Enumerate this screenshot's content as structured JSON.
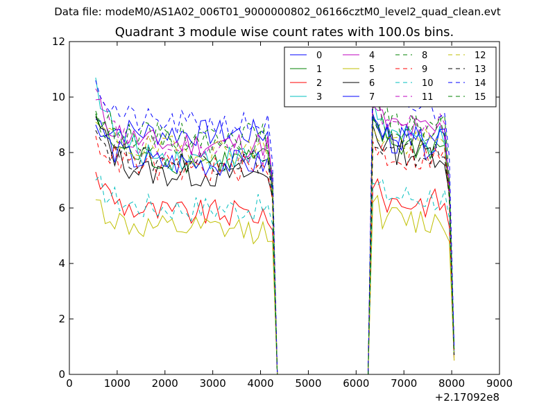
{
  "chart_data": {
    "type": "line",
    "suptitle": "Data file: modeM0/AS1A02_006T01_9000000802_06166cztM0_level2_quad_clean.evt",
    "title": "Quadrant 3 module wise count rates with 100.0s bins.",
    "xlabel": "",
    "ylabel": "",
    "x_offset_label": "+2.17092e8",
    "xlim": [
      0,
      9000
    ],
    "ylim": [
      0,
      12
    ],
    "xticks": [
      0,
      1000,
      2000,
      3000,
      4000,
      5000,
      6000,
      7000,
      8000,
      9000
    ],
    "yticks": [
      0,
      2,
      4,
      6,
      8,
      10,
      12
    ],
    "grid": false,
    "legend": {
      "position": "top-right",
      "columns": 4
    },
    "segments": [
      {
        "x_start": 550,
        "x_end": 4250,
        "step": 100
      },
      {
        "x_start": 4350,
        "x_end": 6250,
        "step": 100
      },
      {
        "x_start": 6350,
        "x_end": 8050,
        "step": 100
      }
    ],
    "series": [
      {
        "name": "0",
        "color": "#0000ff",
        "dash": "solid",
        "level1": 8.7,
        "level2": 8.5,
        "start1": 9.2,
        "start2": 9.4,
        "end1": 6.6,
        "end2": 0.8
      },
      {
        "name": "1",
        "color": "#008000",
        "dash": "solid",
        "level1": 7.7,
        "level2": 8.2,
        "start1": 9.4,
        "start2": 9.2,
        "end1": 6.4,
        "end2": 0.8
      },
      {
        "name": "2",
        "color": "#ff0000",
        "dash": "solid",
        "level1": 5.8,
        "level2": 6.2,
        "start1": 7.3,
        "start2": 6.7,
        "end1": 5.2,
        "end2": 0.5
      },
      {
        "name": "3",
        "color": "#00bfbf",
        "dash": "solid",
        "level1": 7.8,
        "level2": 8.4,
        "start1": 10.7,
        "start2": 10.0,
        "end1": 6.6,
        "end2": 0.8
      },
      {
        "name": "4",
        "color": "#bf00bf",
        "dash": "solid",
        "level1": 8.3,
        "level2": 8.8,
        "start1": 9.9,
        "start2": 9.7,
        "end1": 7.0,
        "end2": 0.9
      },
      {
        "name": "5",
        "color": "#bfbf00",
        "dash": "solid",
        "level1": 5.2,
        "level2": 5.5,
        "start1": 6.3,
        "start2": 6.2,
        "end1": 4.8,
        "end2": 0.5
      },
      {
        "name": "6",
        "color": "#000000",
        "dash": "solid",
        "level1": 7.2,
        "level2": 8.0,
        "start1": 9.3,
        "start2": 9.0,
        "end1": 6.4,
        "end2": 0.8
      },
      {
        "name": "7",
        "color": "#0000ff",
        "dash": "solid",
        "level1": 7.6,
        "level2": 8.3,
        "start1": 9.0,
        "start2": 9.3,
        "end1": 6.7,
        "end2": 0.8
      },
      {
        "name": "8",
        "color": "#008000",
        "dash": "dashed",
        "level1": 8.6,
        "level2": 8.9,
        "start1": 9.5,
        "start2": 9.6,
        "end1": 7.2,
        "end2": 0.9
      },
      {
        "name": "9",
        "color": "#ff0000",
        "dash": "dashed",
        "level1": 7.4,
        "level2": 7.8,
        "start1": 8.6,
        "start2": 8.4,
        "end1": 6.3,
        "end2": 0.7
      },
      {
        "name": "10",
        "color": "#00bfbf",
        "dash": "dashed",
        "level1": 6.0,
        "level2": 6.4,
        "start1": 7.0,
        "start2": 6.9,
        "end1": 5.4,
        "end2": 0.6
      },
      {
        "name": "11",
        "color": "#bf00bf",
        "dash": "dashed",
        "level1": 8.0,
        "level2": 8.9,
        "start1": 10.3,
        "start2": 10.4,
        "end1": 6.9,
        "end2": 0.9
      },
      {
        "name": "12",
        "color": "#bfbf00",
        "dash": "dashed",
        "level1": 8.1,
        "level2": 8.3,
        "start1": 9.1,
        "start2": 9.0,
        "end1": 6.6,
        "end2": 0.8
      },
      {
        "name": "13",
        "color": "#000000",
        "dash": "dashed",
        "level1": 7.7,
        "level2": 7.9,
        "start1": 8.8,
        "start2": 8.2,
        "end1": 6.3,
        "end2": 0.7
      },
      {
        "name": "14",
        "color": "#0000ff",
        "dash": "dashed",
        "level1": 9.0,
        "level2": 9.6,
        "start1": 10.6,
        "start2": 10.9,
        "end1": 7.6,
        "end2": 1.0
      },
      {
        "name": "15",
        "color": "#008000",
        "dash": "dashed",
        "level1": 8.4,
        "level2": 8.8,
        "start1": 9.4,
        "start2": 9.3,
        "end1": 6.8,
        "end2": 0.9
      }
    ]
  }
}
